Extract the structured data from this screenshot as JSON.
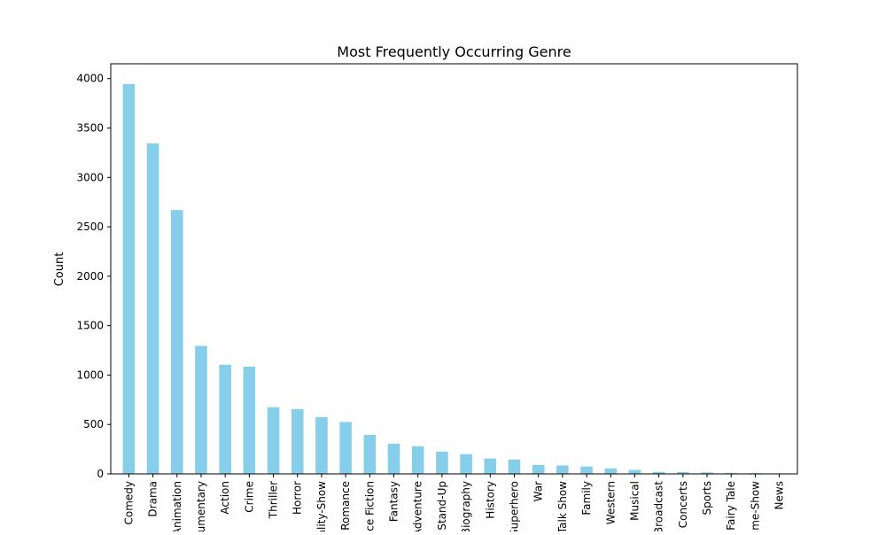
{
  "chart_data": {
    "type": "bar",
    "title": "Most Frequently Occurring Genre",
    "xlabel": "",
    "ylabel": "Count",
    "ylim": [
      0,
      4150
    ],
    "yticks": [
      0,
      500,
      1000,
      1500,
      2000,
      2500,
      3000,
      3500,
      4000
    ],
    "grid": false,
    "bar_color": "#87CEEB",
    "categories": [
      "Comedy",
      "Drama",
      "Animation",
      "Documentary",
      "Action",
      "Crime",
      "Thriller",
      "Horror",
      "Reality-Show",
      "Romance",
      "Science Fiction",
      "Fantasy",
      "Adventure",
      "Stand-Up",
      "Biography",
      "History",
      "Superhero",
      "War",
      "Talk Show",
      "Family",
      "Western",
      "Musical",
      "Broadcast",
      "Concerts",
      "Sports",
      "Fairy Tale",
      "Game-Show",
      "News"
    ],
    "values": [
      3945,
      3345,
      2670,
      1295,
      1105,
      1085,
      675,
      655,
      575,
      525,
      395,
      305,
      280,
      225,
      200,
      155,
      145,
      90,
      85,
      75,
      55,
      40,
      20,
      18,
      15,
      10,
      8,
      3
    ]
  }
}
